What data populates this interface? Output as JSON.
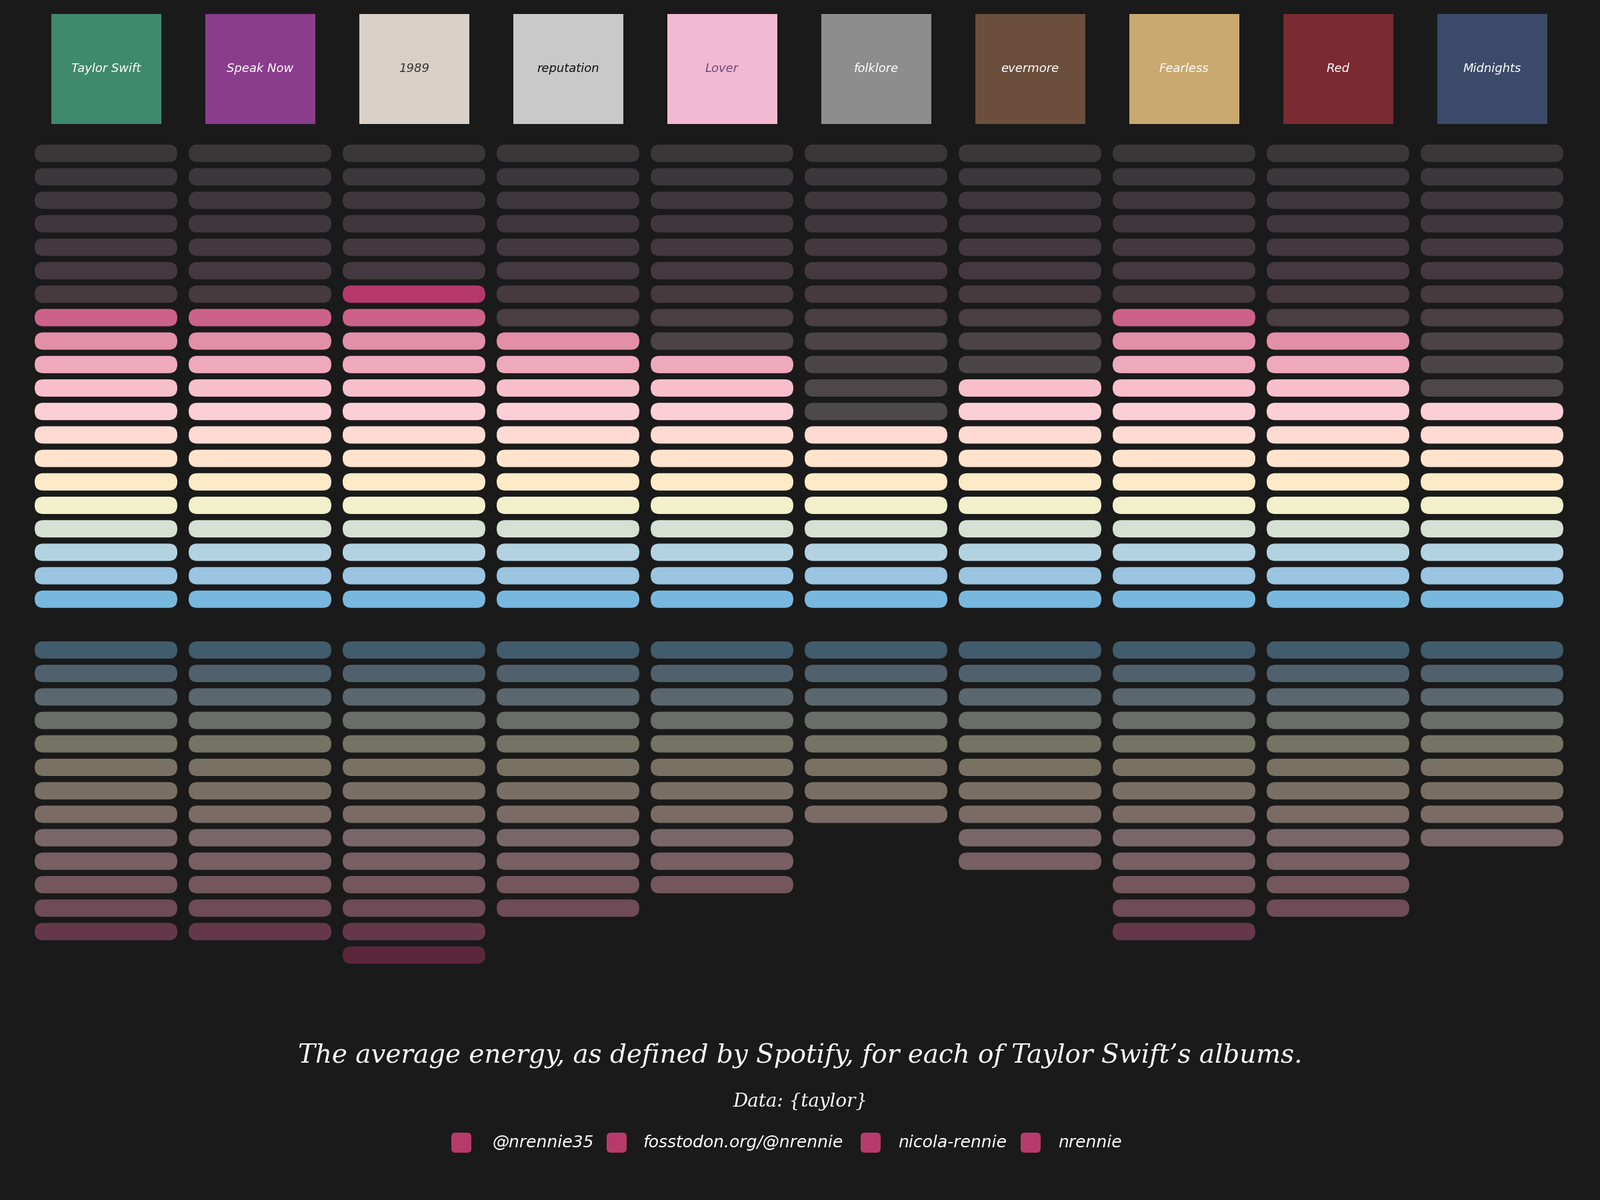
{
  "chart_data": {
    "type": "pictogram",
    "title": "The average energy, as defined by Spotify, for each of Taylor Swift’s albums.",
    "source": "Data: {taylor}",
    "credits": [
      "@nrennie35",
      "fosstodon.org/@nrennie",
      "nicola-rennie",
      "nrennie"
    ],
    "categories": [
      "Taylor Swift",
      "Speak Now",
      "1989",
      "reputation",
      "Lover",
      "folklore",
      "evermore",
      "Fearless",
      "Red",
      "Midnights"
    ],
    "values": [
      0.63,
      0.63,
      0.68,
      0.59,
      0.55,
      0.4,
      0.5,
      0.63,
      0.58,
      0.44
    ],
    "ylim": [
      0,
      1
    ]
  }
}
